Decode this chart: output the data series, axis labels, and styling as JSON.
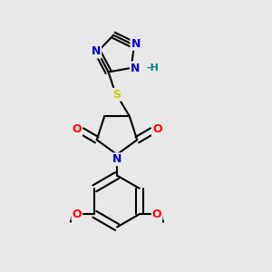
{
  "background_color": "#e8e8e8",
  "atom_colors": {
    "N": "#0000cc",
    "O": "#ff0000",
    "S": "#cccc00",
    "H_label": "#008080",
    "C": "#000000"
  },
  "bond_lw": 1.5,
  "font_size": 9
}
